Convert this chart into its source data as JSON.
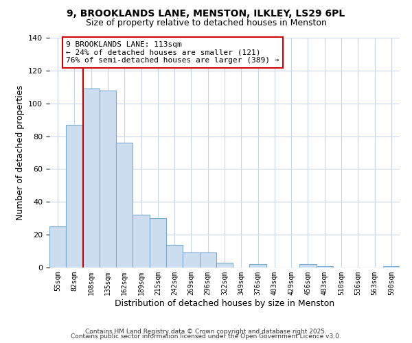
{
  "title": "9, BROOKLANDS LANE, MENSTON, ILKLEY, LS29 6PL",
  "subtitle": "Size of property relative to detached houses in Menston",
  "xlabel": "Distribution of detached houses by size in Menston",
  "ylabel": "Number of detached properties",
  "bar_labels": [
    "55sqm",
    "82sqm",
    "108sqm",
    "135sqm",
    "162sqm",
    "189sqm",
    "215sqm",
    "242sqm",
    "269sqm",
    "296sqm",
    "322sqm",
    "349sqm",
    "376sqm",
    "403sqm",
    "429sqm",
    "456sqm",
    "483sqm",
    "510sqm",
    "536sqm",
    "563sqm",
    "590sqm"
  ],
  "bar_values": [
    25,
    87,
    109,
    108,
    76,
    32,
    30,
    14,
    9,
    9,
    3,
    0,
    2,
    0,
    0,
    2,
    1,
    0,
    0,
    0,
    1
  ],
  "bar_color": "#ccddf0",
  "bar_edge_color": "#7aabcf",
  "vline_color": "#cc0000",
  "vline_label": "9 BROOKLANDS LANE: 113sqm",
  "annotation_line2": "← 24% of detached houses are smaller (121)",
  "annotation_line3": "76% of semi-detached houses are larger (389) →",
  "annotation_box_color": "#ffffff",
  "annotation_box_edge": "#cc0000",
  "ylim": [
    0,
    140
  ],
  "yticks": [
    0,
    20,
    40,
    60,
    80,
    100,
    120,
    140
  ],
  "footer1": "Contains HM Land Registry data © Crown copyright and database right 2025.",
  "footer2": "Contains public sector information licensed under the Open Government Licence v3.0.",
  "background_color": "#ffffff",
  "grid_color": "#c8d4e8"
}
